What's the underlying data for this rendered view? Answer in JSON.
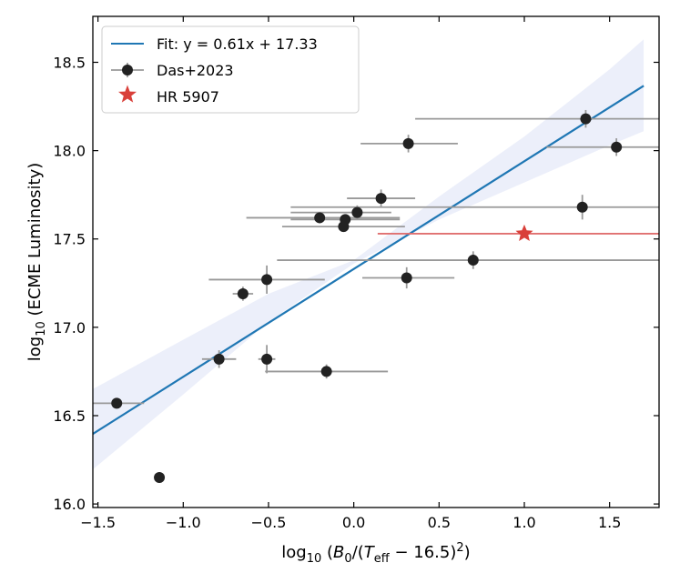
{
  "chart_data": {
    "type": "scatter",
    "xlabel": "log10 (B0/(Teff − 16.5)^2)",
    "ylabel": "log10 (ECME Luminosity)",
    "xlim": [
      -1.53,
      1.79
    ],
    "ylim": [
      15.98,
      18.76
    ],
    "x_ticks": [
      -1.5,
      -1.0,
      -0.5,
      0.0,
      0.5,
      1.0,
      1.5
    ],
    "x_tick_labels": [
      "−1.5",
      "−1.0",
      "−0.5",
      "0.0",
      "0.5",
      "1.0",
      "1.5"
    ],
    "y_ticks": [
      16.0,
      16.5,
      17.0,
      17.5,
      18.0,
      18.5
    ],
    "y_tick_labels": [
      "16.0",
      "16.5",
      "17.0",
      "17.5",
      "18.0",
      "18.5"
    ],
    "legend_position": "top-left",
    "fit": {
      "label": "Fit: y = 0.61x + 17.33",
      "slope": 0.61,
      "intercept": 17.33,
      "x_range": [
        -1.55,
        1.7
      ],
      "color": "#1f77b4",
      "band_color": "#e6e9f8",
      "band": {
        "x": [
          -1.55,
          -1.0,
          -0.5,
          0.0,
          0.5,
          1.0,
          1.5,
          1.7
        ],
        "lower": [
          16.18,
          16.62,
          17.03,
          17.36,
          17.61,
          17.82,
          18.03,
          18.11
        ],
        "upper": [
          16.64,
          16.93,
          17.19,
          17.38,
          17.74,
          18.08,
          18.46,
          18.63
        ]
      }
    },
    "series": [
      {
        "name": "Das+2023",
        "marker": "circle",
        "color": "#222222",
        "errorbar_color": "#999999",
        "points": [
          {
            "x": -1.39,
            "y": 16.57,
            "xlo": -1.55,
            "xhi": -1.23,
            "yerr": 0.02
          },
          {
            "x": -1.14,
            "y": 16.15,
            "xlo": -1.14,
            "xhi": -1.14,
            "yerr": 0.03
          },
          {
            "x": -0.79,
            "y": 16.82,
            "xlo": -0.89,
            "xhi": -0.69,
            "yerr": 0.05
          },
          {
            "x": -0.65,
            "y": 17.19,
            "xlo": -0.71,
            "xhi": -0.59,
            "yerr": 0.04
          },
          {
            "x": -0.51,
            "y": 17.27,
            "xlo": -0.85,
            "xhi": -0.17,
            "yerr": 0.08
          },
          {
            "x": -0.51,
            "y": 16.82,
            "xlo": -0.56,
            "xhi": -0.46,
            "yerr": 0.08
          },
          {
            "x": -0.16,
            "y": 16.75,
            "xlo": -0.52,
            "xhi": 0.2,
            "yerr": 0.04
          },
          {
            "x": -0.2,
            "y": 17.62,
            "xlo": -0.63,
            "xhi": 0.27,
            "yerr": 0.03
          },
          {
            "x": -0.05,
            "y": 17.61,
            "xlo": -0.37,
            "xhi": 0.27,
            "yerr": 0.03
          },
          {
            "x": -0.06,
            "y": 17.57,
            "xlo": -0.42,
            "xhi": 0.3,
            "yerr": 0.03
          },
          {
            "x": 0.02,
            "y": 17.65,
            "xlo": -0.37,
            "xhi": 0.22,
            "yerr": 0.04
          },
          {
            "x": 0.16,
            "y": 17.73,
            "xlo": -0.04,
            "xhi": 0.36,
            "yerr": 0.05
          },
          {
            "x": 0.32,
            "y": 18.04,
            "xlo": 0.04,
            "xhi": 0.61,
            "yerr": 0.05
          },
          {
            "x": 0.31,
            "y": 17.28,
            "xlo": 0.05,
            "xhi": 0.59,
            "yerr": 0.06
          },
          {
            "x": 0.7,
            "y": 17.38,
            "xlo": -0.45,
            "xhi": 1.79,
            "yerr": 0.05
          },
          {
            "x": 1.36,
            "y": 18.18,
            "xlo": 0.36,
            "xhi": 1.79,
            "yerr": 0.05
          },
          {
            "x": 1.54,
            "y": 18.02,
            "xlo": 1.13,
            "xhi": 1.79,
            "yerr": 0.05
          },
          {
            "x": 1.34,
            "y": 17.68,
            "xlo": -0.37,
            "xhi": 1.79,
            "yerr": 0.07
          }
        ]
      },
      {
        "name": "HR 5907",
        "marker": "star",
        "color": "#d9403a",
        "errorbar_color": "#e07070",
        "points": [
          {
            "x": 1.0,
            "y": 17.53,
            "xlo": 0.14,
            "xhi": 1.79,
            "yerr": 0.0
          }
        ]
      }
    ]
  }
}
